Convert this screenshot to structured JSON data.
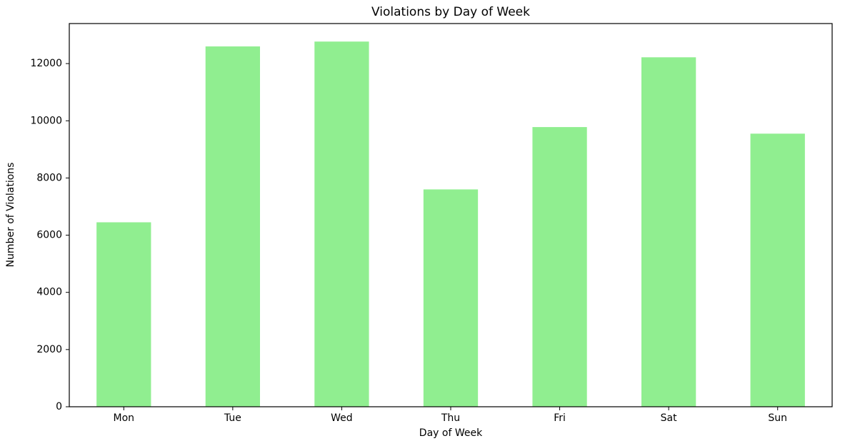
{
  "chart_data": {
    "type": "bar",
    "title": "Violations by Day of Week",
    "x_label": "Day of Week",
    "y_label": "Number of Violations",
    "categories": [
      "Mon",
      "Tue",
      "Wed",
      "Thu",
      "Fri",
      "Sat",
      "Sun"
    ],
    "values": [
      6450,
      12600,
      12770,
      7600,
      9780,
      12220,
      9550
    ],
    "color": "#90ee90",
    "ylim": [
      0,
      13400
    ],
    "yticks": [
      0,
      2000,
      4000,
      6000,
      8000,
      10000,
      12000
    ],
    "grid": false
  }
}
